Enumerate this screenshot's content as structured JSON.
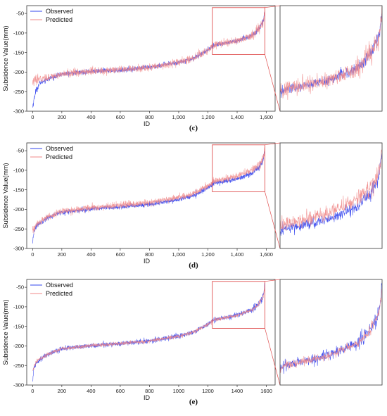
{
  "chart_data": [
    {
      "type": "line",
      "caption": "(c)",
      "xlabel": "ID",
      "ylabel": "Subsidence Value(mm)",
      "xlim": [
        -40,
        1660
      ],
      "ylim": [
        -300,
        -30
      ],
      "x_ticks": [
        0,
        200,
        400,
        600,
        800,
        1000,
        1200,
        1400,
        1600
      ],
      "x_tick_labels": [
        "0",
        "200",
        "400",
        "600",
        "800",
        "1,000",
        "1,200",
        "1,400",
        "1,600"
      ],
      "y_ticks": [
        -300,
        -250,
        -200,
        -150,
        -100,
        -50
      ],
      "y_tick_labels": [
        "-300",
        "-250",
        "-200",
        "-150",
        "-100",
        "-50"
      ],
      "legend": "top-left",
      "zoom_box": {
        "x": [
          1230,
          1590
        ],
        "y": [
          -155,
          -35
        ]
      },
      "series": [
        {
          "name": "Observed",
          "color": "#3344ee",
          "noise": 5,
          "x": [
            0,
            20,
            50,
            100,
            200,
            400,
            600,
            800,
            1000,
            1100,
            1200,
            1250,
            1300,
            1400,
            1500,
            1550,
            1580,
            1590
          ],
          "values": [
            -290,
            -250,
            -228,
            -218,
            -205,
            -198,
            -195,
            -188,
            -175,
            -165,
            -143,
            -130,
            -127,
            -120,
            -107,
            -90,
            -70,
            -40
          ]
        },
        {
          "name": "Predicted",
          "color": "#f08a8a",
          "noise": 8,
          "x": [
            0,
            20,
            50,
            100,
            200,
            400,
            600,
            800,
            1000,
            1100,
            1200,
            1250,
            1300,
            1400,
            1500,
            1550,
            1580,
            1590
          ],
          "values": [
            -225,
            -222,
            -218,
            -214,
            -205,
            -198,
            -195,
            -188,
            -175,
            -165,
            -143,
            -130,
            -127,
            -120,
            -107,
            -90,
            -70,
            -45
          ]
        }
      ]
    },
    {
      "type": "line",
      "caption": "(d)",
      "xlabel": "ID",
      "ylabel": "Subsidence Value(mm)",
      "xlim": [
        -40,
        1660
      ],
      "ylim": [
        -300,
        -30
      ],
      "x_ticks": [
        0,
        200,
        400,
        600,
        800,
        1000,
        1200,
        1400,
        1600
      ],
      "x_tick_labels": [
        "0",
        "200",
        "400",
        "600",
        "800",
        "1,000",
        "1,200",
        "1,400",
        "1,600"
      ],
      "y_ticks": [
        -300,
        -250,
        -200,
        -150,
        -100,
        -50
      ],
      "y_tick_labels": [
        "-300",
        "-250",
        "-200",
        "-150",
        "-100",
        "-50"
      ],
      "legend": "top-left",
      "zoom_box": {
        "x": [
          1230,
          1590
        ],
        "y": [
          -155,
          -35
        ]
      },
      "series": [
        {
          "name": "Observed",
          "color": "#3344ee",
          "noise": 5,
          "x": [
            0,
            10,
            30,
            100,
            200,
            400,
            600,
            800,
            1000,
            1100,
            1200,
            1250,
            1300,
            1400,
            1500,
            1550,
            1580,
            1590
          ],
          "values": [
            -290,
            -255,
            -240,
            -222,
            -207,
            -199,
            -194,
            -187,
            -175,
            -165,
            -145,
            -132,
            -129,
            -122,
            -108,
            -92,
            -72,
            -45
          ]
        },
        {
          "name": "Predicted",
          "color": "#f08a8a",
          "noise": 7,
          "x": [
            0,
            10,
            30,
            100,
            200,
            400,
            600,
            800,
            1000,
            1100,
            1200,
            1250,
            1300,
            1400,
            1500,
            1550,
            1580,
            1590
          ],
          "values": [
            -255,
            -250,
            -238,
            -220,
            -205,
            -196,
            -190,
            -183,
            -170,
            -160,
            -140,
            -127,
            -123,
            -115,
            -100,
            -86,
            -68,
            -48
          ]
        }
      ]
    },
    {
      "type": "line",
      "caption": "(e)",
      "xlabel": "ID",
      "ylabel": "Subsidence Value(mm)",
      "xlim": [
        -40,
        1660
      ],
      "ylim": [
        -300,
        -30
      ],
      "x_ticks": [
        0,
        200,
        400,
        600,
        800,
        1000,
        1200,
        1400,
        1600
      ],
      "x_tick_labels": [
        "0",
        "200",
        "400",
        "600",
        "800",
        "1000",
        "1200",
        "1400",
        "1600"
      ],
      "y_ticks": [
        -300,
        -250,
        -200,
        -150,
        -100,
        -50
      ],
      "y_tick_labels": [
        "-300",
        "-250",
        "-200",
        "-150",
        "-100",
        "-50"
      ],
      "legend": "top-left",
      "zoom_box": {
        "x": [
          1230,
          1590
        ],
        "y": [
          -155,
          -35
        ]
      },
      "series": [
        {
          "name": "Observed",
          "color": "#3344ee",
          "noise": 5,
          "x": [
            0,
            10,
            30,
            100,
            200,
            400,
            600,
            800,
            1000,
            1100,
            1200,
            1250,
            1300,
            1400,
            1500,
            1550,
            1580,
            1590
          ],
          "values": [
            -290,
            -255,
            -240,
            -222,
            -207,
            -199,
            -194,
            -187,
            -175,
            -165,
            -145,
            -132,
            -129,
            -122,
            -108,
            -92,
            -72,
            -40
          ]
        },
        {
          "name": "Predicted",
          "color": "#f08a8a",
          "noise": 4,
          "x": [
            0,
            10,
            30,
            100,
            200,
            400,
            600,
            800,
            1000,
            1100,
            1200,
            1250,
            1300,
            1400,
            1500,
            1550,
            1580,
            1590
          ],
          "values": [
            -262,
            -252,
            -239,
            -222,
            -207,
            -199,
            -194,
            -187,
            -175,
            -165,
            -145,
            -132,
            -129,
            -122,
            -108,
            -92,
            -72,
            -45
          ]
        }
      ]
    }
  ]
}
